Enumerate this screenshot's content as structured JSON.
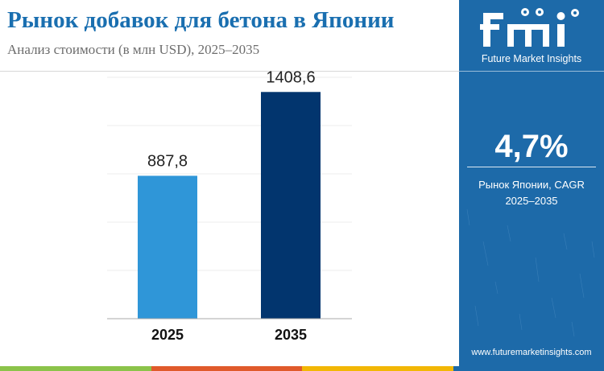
{
  "header": {
    "title": "Рынок добавок для бетона в Японии",
    "subtitle": "Анализ стоимости (в млн USD), 2025–2035"
  },
  "chart_data": {
    "type": "bar",
    "categories": [
      "2025",
      "2035"
    ],
    "values": [
      887.8,
      1408.6
    ],
    "value_labels": [
      "887,8",
      "1408,6"
    ],
    "bar_colors": [
      "#2f96d8",
      "#02356e"
    ],
    "ylim": [
      0,
      1500
    ],
    "grid": true,
    "legend": "none",
    "title": "",
    "xlabel": "",
    "ylabel": ""
  },
  "sidebar": {
    "logo_text": "fmi",
    "brand": "Future Market Insights",
    "cagr_value": "4,7%",
    "cagr_label_line1": "Рынок Японии, CAGR",
    "cagr_label_line2": "2025–2035",
    "website": "www.futuremarketinsights.com",
    "background": "#1d6aa9"
  },
  "footer_colors": [
    "#8bc34a",
    "#e05a2b",
    "#f2b705",
    "#1d6aa9"
  ],
  "icons": [
    "fmi-logo-icon",
    "globe-icon"
  ]
}
